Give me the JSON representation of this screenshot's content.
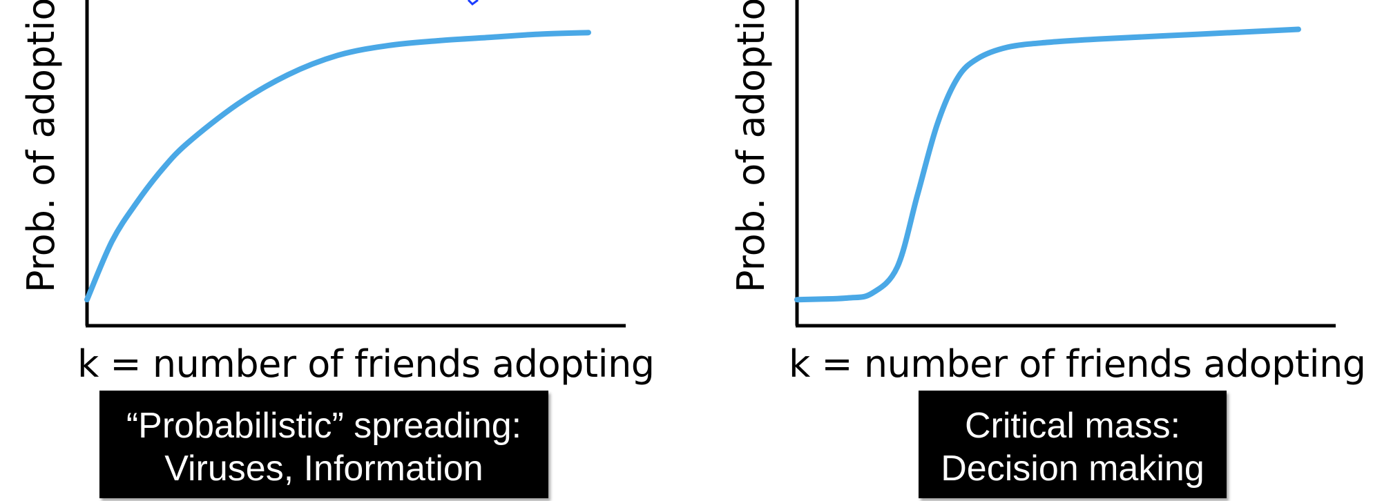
{
  "chart_data": [
    {
      "type": "line",
      "ylabel": "Prob. of adoption",
      "xlabel": "k = number of friends adopting",
      "caption": [
        "“Probabilistic” spreading:",
        "Viruses, Information"
      ],
      "line_color": "#4aa8e6",
      "axis_color": "#000000",
      "series": [
        {
          "x": [
            0,
            0.5,
            1,
            1.5,
            2,
            3,
            4,
            5,
            6,
            7,
            8,
            9,
            10
          ],
          "y": [
            0.08,
            0.26,
            0.38,
            0.48,
            0.56,
            0.68,
            0.77,
            0.83,
            0.86,
            0.875,
            0.885,
            0.895,
            0.9
          ]
        }
      ]
    },
    {
      "type": "line",
      "ylabel": "Prob. of adoption",
      "xlabel": "k = number of friends adopting",
      "caption": [
        "Critical mass:",
        "Decision making"
      ],
      "line_color": "#4aa8e6",
      "axis_color": "#000000",
      "series": [
        {
          "x": [
            0,
            1,
            1.5,
            2,
            2.4,
            2.8,
            3.2,
            3.6,
            4.2,
            5,
            6,
            8,
            10
          ],
          "y": [
            0.08,
            0.085,
            0.1,
            0.18,
            0.4,
            0.62,
            0.76,
            0.82,
            0.855,
            0.87,
            0.88,
            0.895,
            0.91
          ]
        }
      ]
    }
  ]
}
